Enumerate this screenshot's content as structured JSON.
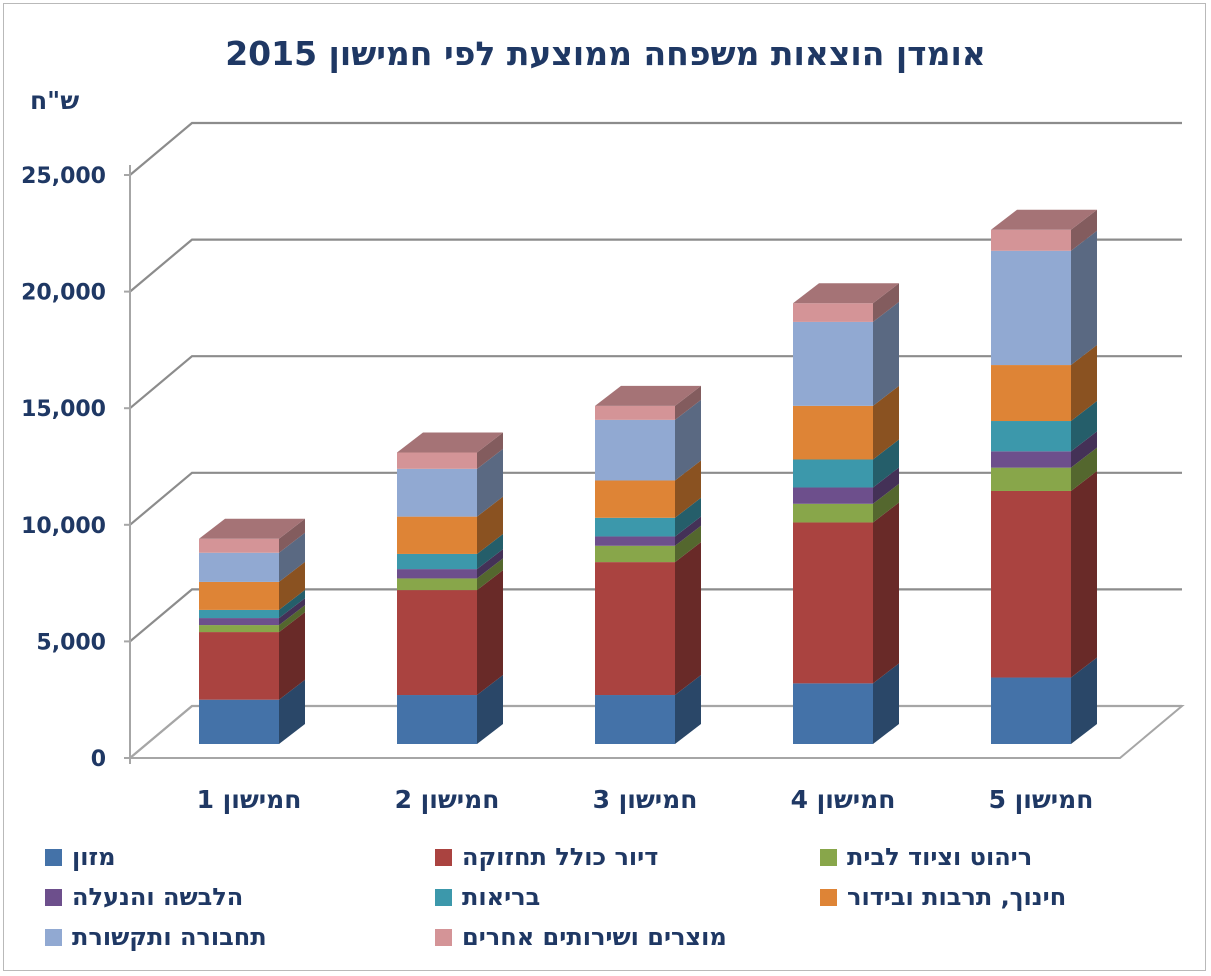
{
  "chart_data": {
    "type": "bar",
    "stacked": true,
    "three_d": true,
    "title": "אומדן הוצאות משפחה ממוצעת לפי חמישון 2015",
    "unit_label": "ש\"ח",
    "categories": [
      "חמישון 1",
      "חמישון 2",
      "חמישון 3",
      "חמישון 4",
      "חמישון 5"
    ],
    "ylim": [
      0,
      25000
    ],
    "yticks": [
      0,
      5000,
      10000,
      15000,
      20000,
      25000
    ],
    "ytick_labels": [
      "0",
      "5,000",
      "10,000",
      "15,000",
      "20,000",
      "25,000"
    ],
    "grid": true,
    "legend_position": "bottom",
    "series": [
      {
        "name": "מזון",
        "color": "#4472a8",
        "values": [
          1900,
          2100,
          2100,
          2600,
          2850
        ]
      },
      {
        "name": "דיור כולל תחזוקה",
        "color": "#aa4340",
        "values": [
          2900,
          4500,
          5700,
          6900,
          8000
        ]
      },
      {
        "name": "ריהוט וציוד לבית",
        "color": "#88a64a",
        "values": [
          300,
          500,
          700,
          800,
          1000
        ]
      },
      {
        "name": "הלבשה והנעלה",
        "color": "#6d4f8c",
        "values": [
          300,
          400,
          400,
          700,
          700
        ]
      },
      {
        "name": "בריאות",
        "color": "#3c98ab",
        "values": [
          350,
          650,
          800,
          1200,
          1300
        ]
      },
      {
        "name": "חינוך, תרבות ובידור",
        "color": "#de8436",
        "values": [
          1200,
          1600,
          1600,
          2300,
          2400
        ]
      },
      {
        "name": "תחבורה ותקשורת",
        "color": "#91a9d2",
        "values": [
          1250,
          2050,
          2600,
          3600,
          4900
        ]
      },
      {
        "name": "מוצרים ושירותים אחרים",
        "color": "#d49497",
        "values": [
          600,
          700,
          600,
          800,
          900
        ]
      }
    ]
  }
}
